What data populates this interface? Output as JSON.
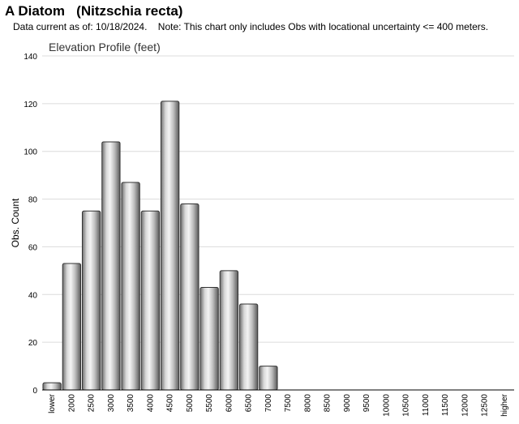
{
  "header": {
    "title": "A Diatom   (Nitzschia recta)",
    "note": "Data current as of: 10/18/2024.    Note: This chart only includes Obs with locational uncertainty <= 400 meters."
  },
  "chart_data": {
    "type": "bar",
    "title": "Elevation Profile (feet)",
    "xlabel": "",
    "ylabel": "Obs. Count",
    "ylim": [
      0,
      140
    ],
    "yticks": [
      0,
      20,
      40,
      60,
      80,
      100,
      120,
      140
    ],
    "grid": true,
    "categories": [
      "lower",
      "2000",
      "2500",
      "3000",
      "3500",
      "4000",
      "4500",
      "5000",
      "5500",
      "6000",
      "6500",
      "7000",
      "7500",
      "8000",
      "8500",
      "9000",
      "9500",
      "10000",
      "10500",
      "11000",
      "11500",
      "12000",
      "12500",
      "higher"
    ],
    "values": [
      3,
      53,
      75,
      104,
      87,
      75,
      121,
      78,
      43,
      50,
      36,
      10,
      0,
      0,
      0,
      0,
      0,
      0,
      0,
      0,
      0,
      0,
      0,
      0
    ]
  }
}
